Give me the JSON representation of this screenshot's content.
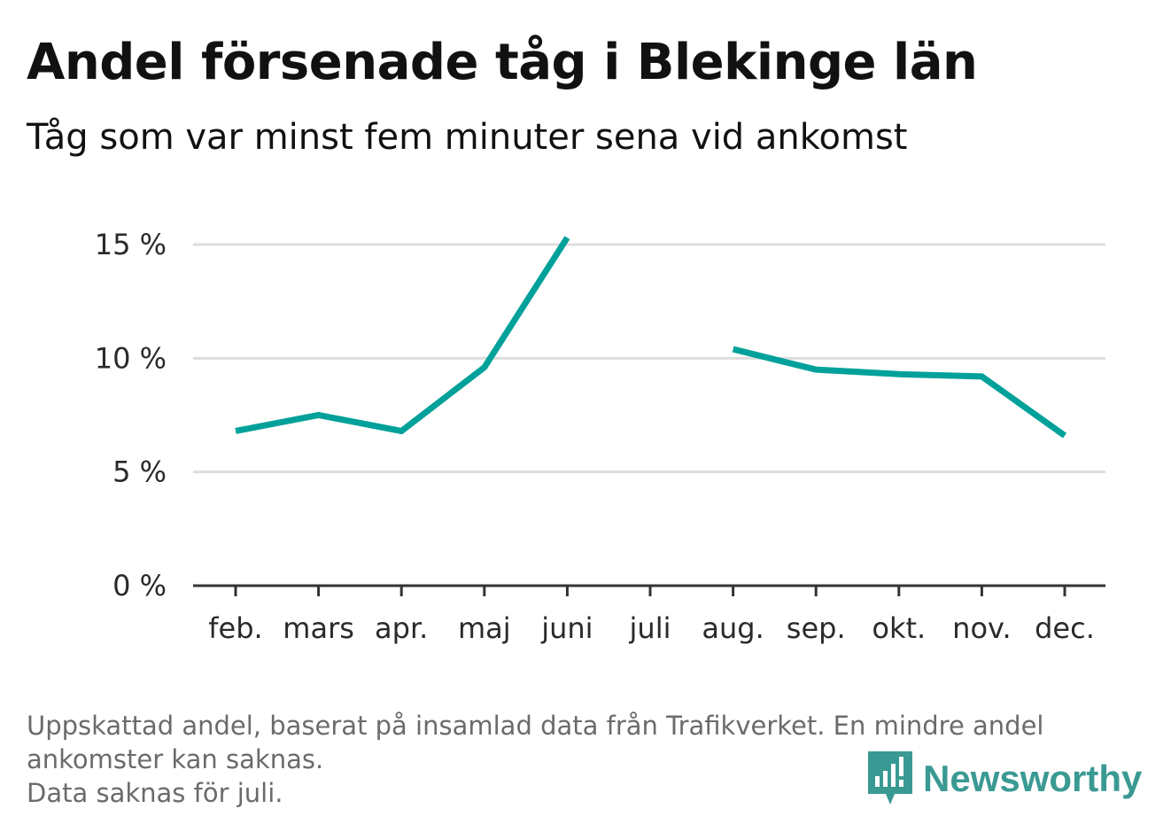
{
  "header": {
    "title": "Andel försenade tåg i Blekinge län",
    "subtitle": "Tåg som var minst fem minuter sena vid ankomst"
  },
  "footnote": {
    "line1": "Uppskattad andel, baserat på insamlad data från Trafikverket. En mindre andel",
    "line2": "ankomster kan saknas.",
    "line3": "Data saknas för juli."
  },
  "brand": {
    "name": "Newsworthy",
    "color": "#3a9a93"
  },
  "colors": {
    "line": "#00a19a",
    "grid": "#dddddd",
    "axis": "#333333"
  },
  "chart_data": {
    "type": "line",
    "title": "Andel försenade tåg i Blekinge län",
    "subtitle": "Tåg som var minst fem minuter sena vid ankomst",
    "categories": [
      "feb.",
      "mars",
      "apr.",
      "maj",
      "juni",
      "juli",
      "aug.",
      "sep.",
      "okt.",
      "nov.",
      "dec."
    ],
    "series": [
      {
        "values": [
          6.8,
          7.5,
          6.8,
          9.6,
          15.3,
          null,
          10.4,
          9.5,
          9.3,
          9.2,
          6.6
        ]
      }
    ],
    "yticks": [
      0,
      5,
      10,
      15
    ],
    "ytick_labels": [
      "0 %",
      "5 %",
      "10 %",
      "15 %"
    ],
    "ylim": [
      0,
      15
    ],
    "grid": true,
    "legend": "none"
  }
}
